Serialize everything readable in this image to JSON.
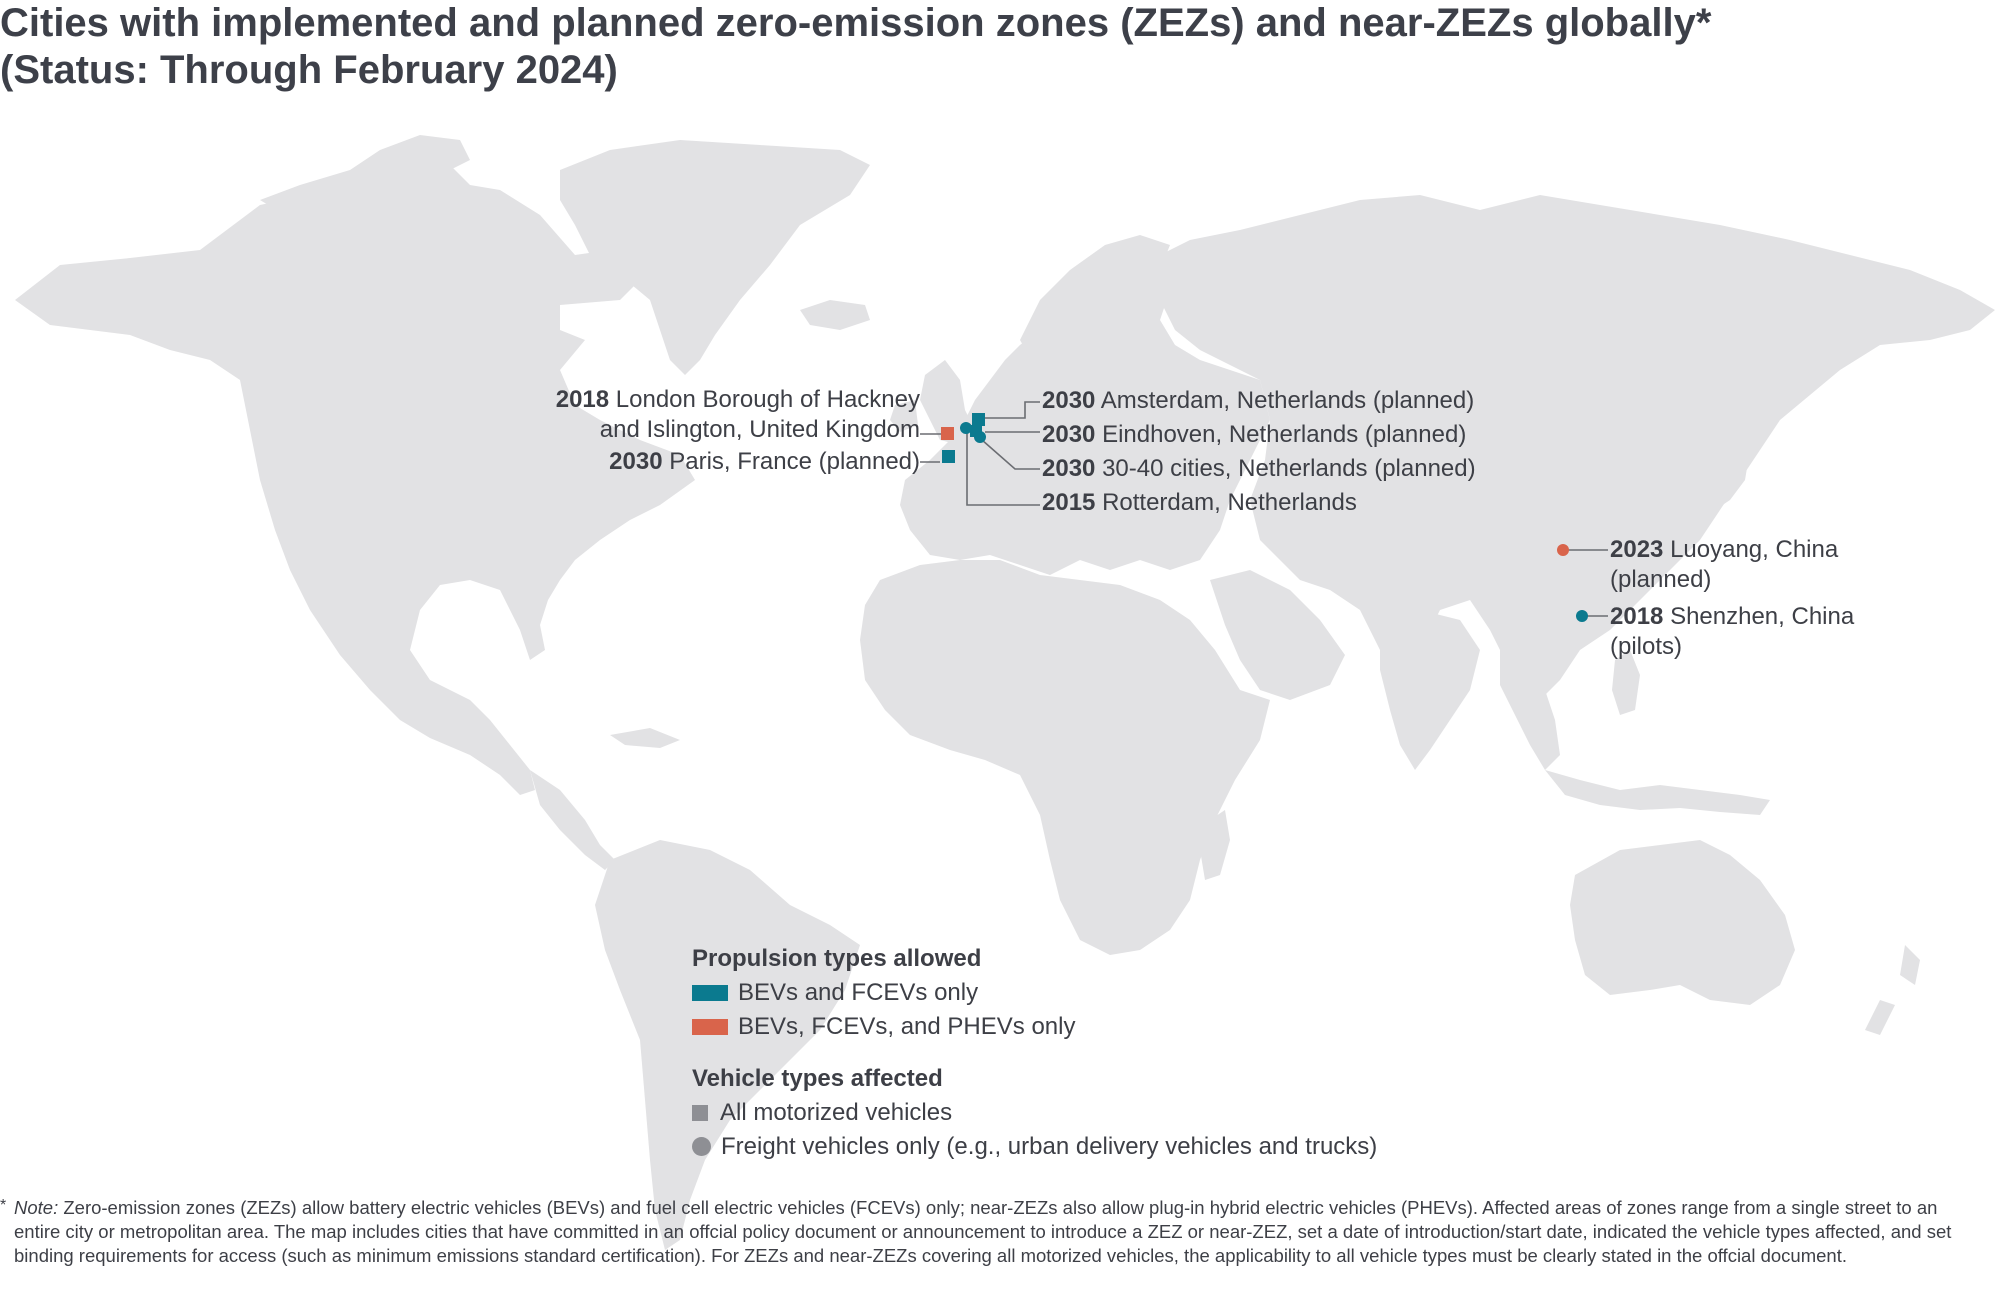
{
  "title": {
    "line1": "Cities with implemented and planned zero-emission zones (ZEZs) and near-ZEZs globally*",
    "line2": "(Status: Through February 2024)"
  },
  "colors": {
    "land": "#e2e2e4",
    "bev_fcev": "#0b7a8f",
    "bev_fcev_phev": "#d9644b",
    "symbol_gray": "#8e8f94",
    "text": "#3d3f46"
  },
  "locations": [
    {
      "id": "london",
      "year": "2018",
      "name_line1": "London Borough of Hackney",
      "name_line2": "and Islington, United Kingdom",
      "propulsion": "BEVs, FCEVs, and PHEVs only",
      "vehicles": "All motorized vehicles"
    },
    {
      "id": "paris",
      "year": "2030",
      "name": "Paris, France (planned)",
      "propulsion": "BEVs and FCEVs only",
      "vehicles": "All motorized vehicles"
    },
    {
      "id": "amsterdam",
      "year": "2030",
      "name": "Amsterdam, Netherlands (planned)",
      "propulsion": "BEVs and FCEVs only",
      "vehicles": "All motorized vehicles"
    },
    {
      "id": "eindhoven",
      "year": "2030",
      "name": "Eindhoven, Netherlands (planned)",
      "propulsion": "BEVs and FCEVs only",
      "vehicles": "All motorized vehicles"
    },
    {
      "id": "nl30",
      "year": "2030",
      "name": "30-40 cities, Netherlands (planned)",
      "propulsion": "BEVs and FCEVs only",
      "vehicles": "Freight vehicles only (e.g., urban delivery vehicles and trucks)"
    },
    {
      "id": "rotterdam",
      "year": "2015",
      "name": "Rotterdam, Netherlands",
      "propulsion": "BEVs and FCEVs only",
      "vehicles": "Freight vehicles only (e.g., urban delivery vehicles and trucks)"
    },
    {
      "id": "luoyang",
      "year": "2023",
      "name_line1": "Luoyang, China",
      "name_line2": "(planned)",
      "propulsion": "BEVs, FCEVs, and PHEVs only",
      "vehicles": "Freight vehicles only (e.g., urban delivery vehicles and trucks)"
    },
    {
      "id": "shenzhen",
      "year": "2018",
      "name_line1": "Shenzhen, China",
      "name_line2": "(pilots)",
      "propulsion": "BEVs and FCEVs only",
      "vehicles": "Freight vehicles only (e.g., urban delivery vehicles and trucks)"
    }
  ],
  "legend": {
    "propulsion_title": "Propulsion types allowed",
    "propulsion_items": [
      "BEVs and FCEVs only",
      "BEVs, FCEVs, and PHEVs only"
    ],
    "vehicle_title": "Vehicle types affected",
    "vehicle_items": [
      "All motorized vehicles",
      "Freight vehicles only (e.g., urban delivery vehicles and trucks)"
    ]
  },
  "note": {
    "star": "*",
    "label": "Note:",
    "text": " Zero-emission zones (ZEZs) allow battery electric vehicles (BEVs) and fuel cell electric vehicles (FCEVs) only; near-ZEZs also allow plug-in hybrid electric vehicles (PHEVs). Affected areas of zones range from a single street to an entire city or metropolitan area. The map includes cities that have committed in an offcial policy document or announcement to introduce a ZEZ or near-ZEZ, set a date of introduction/start date, indicated the vehicle types affected, and set binding requirements for access (such as minimum emissions standard certification). For ZEZs and near-ZEZs covering all motorized vehicles, the applicability to all vehicle types must be clearly stated in the offcial document."
  }
}
